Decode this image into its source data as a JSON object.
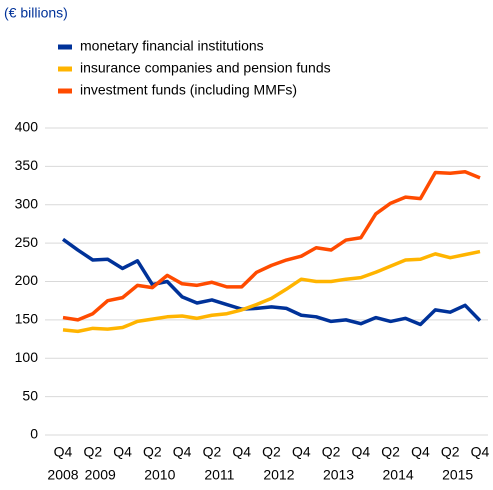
{
  "chart_data": {
    "type": "line",
    "subtitle": "(€ billions)",
    "categories": [
      "Q4",
      null,
      "Q2",
      null,
      "Q4",
      null,
      "Q2",
      null,
      "Q4",
      null,
      "Q2",
      null,
      "Q4",
      null,
      "Q2",
      null,
      "Q4",
      null,
      "Q2",
      null,
      "Q4",
      null,
      "Q2",
      null,
      "Q4",
      null,
      "Q2",
      null,
      "Q4"
    ],
    "year_labels": [
      "2008",
      "2009",
      "2010",
      "2011",
      "2012",
      "2013",
      "2014",
      "2015"
    ],
    "series": [
      {
        "name": "monetary financial institutions",
        "color": "#003299",
        "values": [
          255,
          241,
          228,
          229,
          217,
          227,
          196,
          200,
          180,
          172,
          176,
          170,
          164,
          165,
          167,
          165,
          156,
          154,
          148,
          150,
          145,
          153,
          148,
          152,
          144,
          163,
          160,
          169,
          149
        ]
      },
      {
        "name": "insurance companies and pension funds",
        "color": "#ffb400",
        "values": [
          137,
          135,
          139,
          138,
          140,
          148,
          151,
          154,
          155,
          152,
          156,
          158,
          163,
          170,
          178,
          190,
          203,
          200,
          200,
          203,
          205,
          212,
          220,
          228,
          229,
          236,
          231,
          235,
          239
        ]
      },
      {
        "name": "investment funds (including MMFs)",
        "color": "#ff4b00",
        "values": [
          153,
          150,
          158,
          175,
          179,
          195,
          192,
          208,
          197,
          195,
          199,
          193,
          193,
          212,
          221,
          228,
          233,
          244,
          241,
          254,
          257,
          288,
          302,
          310,
          308,
          342,
          341,
          343,
          335
        ]
      }
    ],
    "ylim": [
      0,
      400
    ],
    "yticks": [
      0,
      50,
      100,
      150,
      200,
      250,
      300,
      350,
      400
    ],
    "grid": true
  }
}
